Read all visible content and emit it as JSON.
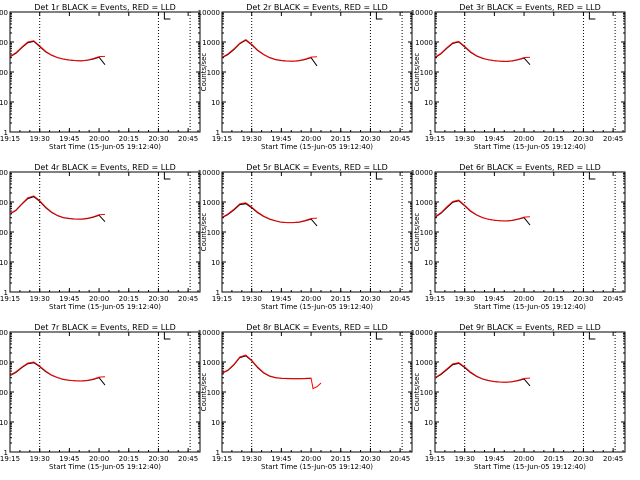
{
  "colors": {
    "events": "#000000",
    "lld": "#ff0000",
    "axes": "#000000",
    "background": "#ffffff"
  },
  "common": {
    "ylabel": "Counts/sec",
    "xlabel": "Start Time (15-Jun-05 19:12:40)",
    "ylim": [
      1,
      10000
    ],
    "yscale": "log",
    "yticks": [
      1,
      10,
      100,
      1000,
      10000
    ],
    "xlim": [
      "19:15",
      "20:51"
    ],
    "xticks": [
      "19:15",
      "19:30",
      "19:45",
      "20:00",
      "20:15",
      "20:30",
      "20:45"
    ],
    "vlines": [
      "19:30",
      "20:30",
      "20:46"
    ],
    "bracket_start": "20:33",
    "grid": false
  },
  "chart_data": [
    {
      "type": "line",
      "title": "Det 1r BLACK = Events, RED = LLD",
      "yscale": "log",
      "x": [
        "19:15",
        "19:18",
        "19:21",
        "19:24",
        "19:27",
        "19:30",
        "19:33",
        "19:36",
        "19:39",
        "19:42",
        "19:45",
        "19:48",
        "19:51",
        "19:54",
        "19:57",
        "20:00",
        "20:03"
      ],
      "series": [
        {
          "values": [
            320,
            420,
            650,
            950,
            1050,
            700,
            470,
            360,
            300,
            270,
            250,
            240,
            235,
            245,
            270,
            310,
            175
          ]
        },
        {
          "values": [
            330,
            440,
            680,
            1000,
            1100,
            740,
            490,
            370,
            305,
            272,
            252,
            242,
            237,
            250,
            280,
            325,
            330
          ]
        }
      ]
    },
    {
      "type": "line",
      "title": "Det 2r BLACK = Events, RED = LLD",
      "yscale": "log",
      "x": [
        "19:15",
        "19:18",
        "19:21",
        "19:24",
        "19:27",
        "19:30",
        "19:33",
        "19:36",
        "19:39",
        "19:42",
        "19:45",
        "19:48",
        "19:51",
        "19:54",
        "19:57",
        "20:00",
        "20:03"
      ],
      "series": [
        {
          "values": [
            300,
            380,
            560,
            880,
            1150,
            800,
            520,
            380,
            300,
            260,
            240,
            230,
            228,
            238,
            262,
            300,
            160
          ]
        },
        {
          "values": [
            310,
            400,
            590,
            920,
            1200,
            840,
            540,
            390,
            306,
            264,
            243,
            232,
            230,
            242,
            270,
            315,
            320
          ]
        }
      ]
    },
    {
      "type": "line",
      "title": "Det 3r BLACK = Events, RED = LLD",
      "yscale": "log",
      "x": [
        "19:15",
        "19:18",
        "19:21",
        "19:24",
        "19:27",
        "19:30",
        "19:33",
        "19:36",
        "19:39",
        "19:42",
        "19:45",
        "19:48",
        "19:51",
        "19:54",
        "19:57",
        "20:00",
        "20:03"
      ],
      "series": [
        {
          "values": [
            300,
            400,
            620,
            900,
            1000,
            680,
            450,
            340,
            285,
            255,
            238,
            228,
            224,
            232,
            255,
            290,
            175
          ]
        },
        {
          "values": [
            312,
            420,
            650,
            950,
            1050,
            715,
            470,
            350,
            290,
            258,
            240,
            230,
            226,
            236,
            262,
            302,
            310
          ]
        }
      ]
    },
    {
      "type": "line",
      "title": "Det 4r BLACK = Events, RED = LLD",
      "yscale": "log",
      "x": [
        "19:15",
        "19:18",
        "19:21",
        "19:24",
        "19:27",
        "19:30",
        "19:33",
        "19:36",
        "19:39",
        "19:42",
        "19:45",
        "19:48",
        "19:51",
        "19:54",
        "19:57",
        "20:00",
        "20:03"
      ],
      "series": [
        {
          "values": [
            400,
            520,
            850,
            1300,
            1500,
            1050,
            650,
            450,
            350,
            300,
            280,
            270,
            268,
            280,
            310,
            360,
            220
          ]
        },
        {
          "values": [
            410,
            540,
            880,
            1380,
            1600,
            1110,
            680,
            465,
            358,
            304,
            283,
            272,
            271,
            286,
            320,
            375,
            385
          ]
        }
      ]
    },
    {
      "type": "line",
      "title": "Det 5r BLACK = Events, RED = LLD",
      "yscale": "log",
      "x": [
        "19:15",
        "19:18",
        "19:21",
        "19:24",
        "19:27",
        "19:30",
        "19:33",
        "19:36",
        "19:39",
        "19:42",
        "19:45",
        "19:48",
        "19:51",
        "19:54",
        "19:57",
        "20:00",
        "20:03"
      ],
      "series": [
        {
          "values": [
            300,
            380,
            540,
            820,
            880,
            640,
            440,
            330,
            270,
            235,
            210,
            205,
            205,
            212,
            235,
            270,
            160
          ]
        },
        {
          "values": [
            310,
            400,
            570,
            870,
            940,
            680,
            460,
            340,
            275,
            238,
            212,
            207,
            207,
            216,
            242,
            282,
            290
          ]
        }
      ]
    },
    {
      "type": "line",
      "title": "Det 6r BLACK = Events, RED = LLD",
      "yscale": "log",
      "x": [
        "19:15",
        "19:18",
        "19:21",
        "19:24",
        "19:27",
        "19:30",
        "19:33",
        "19:36",
        "19:39",
        "19:42",
        "19:45",
        "19:48",
        "19:51",
        "19:54",
        "19:57",
        "20:00",
        "20:03"
      ],
      "series": [
        {
          "values": [
            310,
            420,
            650,
            980,
            1100,
            740,
            490,
            365,
            300,
            265,
            245,
            236,
            232,
            242,
            265,
            300,
            170
          ]
        },
        {
          "values": [
            322,
            440,
            690,
            1040,
            1160,
            780,
            510,
            375,
            305,
            268,
            248,
            238,
            234,
            246,
            272,
            315,
            320
          ]
        }
      ]
    },
    {
      "type": "line",
      "title": "Det 7r BLACK = Events, RED = LLD",
      "yscale": "log",
      "x": [
        "19:15",
        "19:18",
        "19:21",
        "19:24",
        "19:27",
        "19:30",
        "19:33",
        "19:36",
        "19:39",
        "19:42",
        "19:45",
        "19:48",
        "19:51",
        "19:54",
        "19:57",
        "20:00",
        "20:03"
      ],
      "series": [
        {
          "values": [
            350,
            450,
            650,
            880,
            950,
            700,
            480,
            360,
            300,
            262,
            244,
            236,
            232,
            240,
            262,
            300,
            170
          ]
        },
        {
          "values": [
            362,
            470,
            680,
            920,
            1000,
            735,
            500,
            370,
            305,
            265,
            247,
            238,
            234,
            244,
            270,
            313,
            320
          ]
        }
      ]
    },
    {
      "type": "line",
      "title": "Det 8r BLACK = Events, RED = LLD",
      "yscale": "log",
      "x": [
        "19:15",
        "19:18",
        "19:21",
        "19:24",
        "19:27",
        "19:30",
        "19:33",
        "19:36",
        "19:39",
        "19:42",
        "19:45",
        "19:48",
        "19:51",
        "19:54",
        "19:57",
        "20:00",
        "20:01",
        "20:03",
        "20:05"
      ],
      "series": [
        {
          "values": [
            420,
            520,
            800,
            1400,
            1600,
            1100,
            650,
            430,
            340,
            300,
            285,
            280,
            278,
            278,
            280,
            285,
            null,
            null,
            null
          ]
        },
        {
          "values": [
            430,
            540,
            840,
            1480,
            1700,
            1150,
            680,
            445,
            348,
            305,
            288,
            283,
            281,
            281,
            283,
            290,
            130,
            150,
            200
          ]
        }
      ]
    },
    {
      "type": "line",
      "title": "Det 9r BLACK = Events, RED = LLD",
      "yscale": "log",
      "x": [
        "19:15",
        "19:18",
        "19:21",
        "19:24",
        "19:27",
        "19:30",
        "19:33",
        "19:36",
        "19:39",
        "19:42",
        "19:45",
        "19:48",
        "19:51",
        "19:54",
        "19:57",
        "20:00",
        "20:03"
      ],
      "series": [
        {
          "values": [
            290,
            380,
            560,
            820,
            900,
            650,
            440,
            330,
            272,
            240,
            222,
            214,
            210,
            218,
            240,
            272,
            160
          ]
        },
        {
          "values": [
            300,
            400,
            590,
            870,
            950,
            685,
            460,
            340,
            276,
            243,
            224,
            216,
            212,
            222,
            246,
            283,
            290
          ]
        }
      ]
    }
  ]
}
